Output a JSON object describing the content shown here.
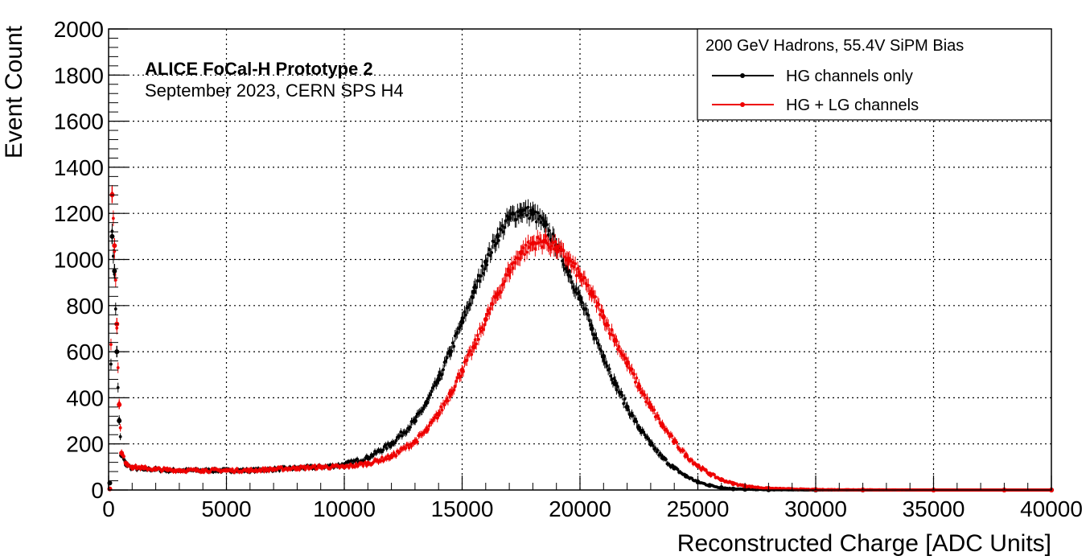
{
  "chart_data": {
    "type": "scatter",
    "xlabel": "Reconstructed Charge [ADC Units]",
    "ylabel": "Event Count",
    "xlim": [
      0,
      40000
    ],
    "ylim": [
      0,
      2000
    ],
    "grid": true,
    "x_ticks": [
      "0",
      "5000",
      "10000",
      "15000",
      "20000",
      "25000",
      "30000",
      "35000",
      "40000"
    ],
    "y_ticks": [
      "0",
      "200",
      "400",
      "600",
      "800",
      "1000",
      "1200",
      "1400",
      "1600",
      "1800",
      "2000"
    ],
    "annotations": {
      "experiment": "ALICE FoCal-H Prototype 2",
      "run": "September 2023, CERN SPS H4"
    },
    "legend": {
      "title": "200 GeV Hadrons, 55.4V SiPM Bias",
      "position": "top-right"
    },
    "series": [
      {
        "name": "HG channels only",
        "color": "#000000",
        "x": [
          50,
          150,
          250,
          350,
          450,
          550,
          750,
          1000,
          1500,
          2000,
          2500,
          3000,
          4000,
          5000,
          6000,
          7000,
          8000,
          9000,
          10000,
          11000,
          12000,
          13000,
          13500,
          14000,
          14500,
          15000,
          15500,
          16000,
          16500,
          17000,
          17500,
          18000,
          18500,
          19000,
          19500,
          20000,
          20500,
          21000,
          21500,
          22000,
          22500,
          23000,
          23500,
          24000,
          24500,
          25000,
          25500,
          26000,
          26500,
          27000,
          28000,
          30000,
          32000,
          35000,
          38000,
          40000
        ],
        "y": [
          30,
          1100,
          950,
          600,
          300,
          150,
          110,
          95,
          90,
          90,
          85,
          85,
          85,
          85,
          85,
          90,
          95,
          100,
          110,
          140,
          200,
          300,
          380,
          480,
          600,
          730,
          860,
          990,
          1100,
          1180,
          1210,
          1200,
          1150,
          1060,
          950,
          830,
          700,
          580,
          460,
          360,
          270,
          200,
          140,
          95,
          60,
          35,
          20,
          10,
          5,
          3,
          1,
          0,
          0,
          0,
          0,
          0
        ]
      },
      {
        "name": "HG + LG channels",
        "color": "#ee0000",
        "x": [
          50,
          150,
          250,
          350,
          450,
          550,
          750,
          1000,
          1500,
          2000,
          2500,
          3000,
          4000,
          5000,
          6000,
          7000,
          8000,
          9000,
          10000,
          11000,
          12000,
          13000,
          13500,
          14000,
          14500,
          15000,
          15500,
          16000,
          16500,
          17000,
          17500,
          18000,
          18500,
          19000,
          19500,
          20000,
          20500,
          21000,
          21500,
          22000,
          22500,
          23000,
          23500,
          24000,
          24500,
          25000,
          25500,
          26000,
          26500,
          27000,
          28000,
          30000,
          32000,
          35000,
          38000,
          40000
        ],
        "y": [
          5,
          1280,
          1060,
          720,
          370,
          160,
          115,
          100,
          95,
          90,
          88,
          85,
          85,
          85,
          85,
          90,
          95,
          100,
          100,
          115,
          145,
          210,
          260,
          330,
          420,
          520,
          620,
          740,
          850,
          950,
          1030,
          1070,
          1080,
          1050,
          1000,
          930,
          850,
          750,
          650,
          550,
          450,
          360,
          280,
          210,
          150,
          105,
          70,
          45,
          28,
          17,
          7,
          2,
          1,
          0,
          0,
          0
        ]
      }
    ]
  }
}
